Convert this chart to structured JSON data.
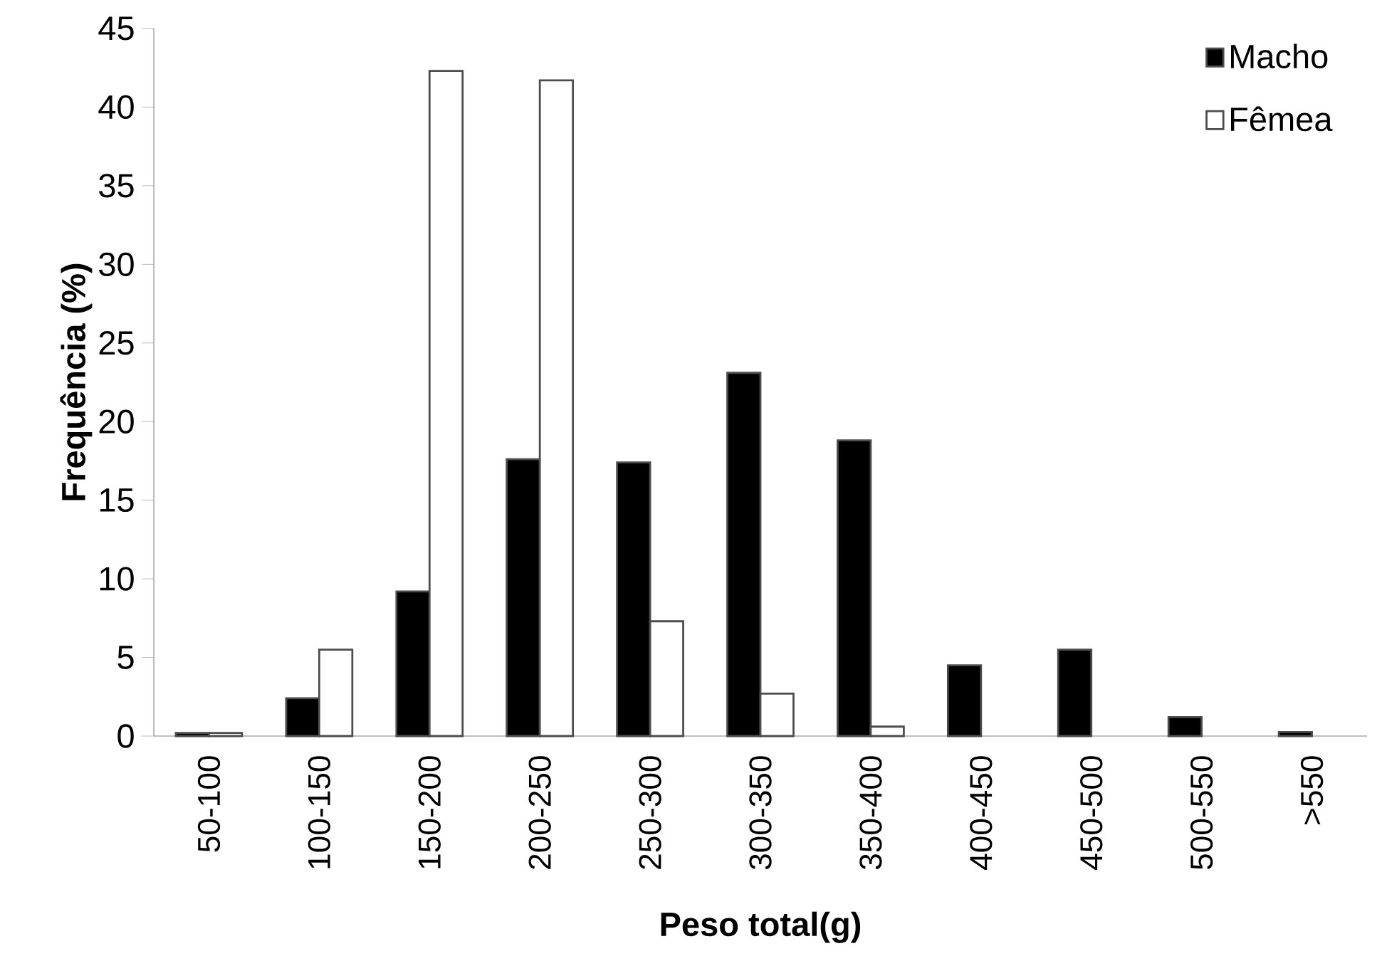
{
  "chart_data": {
    "type": "bar",
    "xlabel": "Peso total(g)",
    "ylabel": "Frequência (%)",
    "categories": [
      "50-100",
      "100-150",
      "150-200",
      "200-250",
      "250-300",
      "300-350",
      "350-400",
      "400-450",
      "450-500",
      "500-550",
      ">550"
    ],
    "series": [
      {
        "name": "Macho",
        "color": "#000000",
        "values": [
          0.2,
          2.4,
          9.2,
          17.6,
          17.4,
          23.1,
          18.8,
          4.5,
          5.5,
          1.2,
          0.25
        ]
      },
      {
        "name": "Fêmea",
        "color": "#ffffff",
        "values": [
          0.2,
          5.5,
          42.3,
          41.7,
          7.3,
          2.7,
          0.6,
          null,
          null,
          null,
          null
        ]
      }
    ],
    "ylim": [
      0,
      45
    ],
    "yticks": [
      0,
      5,
      10,
      15,
      20,
      25,
      30,
      35,
      40,
      45
    ],
    "legend": "top right",
    "grid": false
  }
}
